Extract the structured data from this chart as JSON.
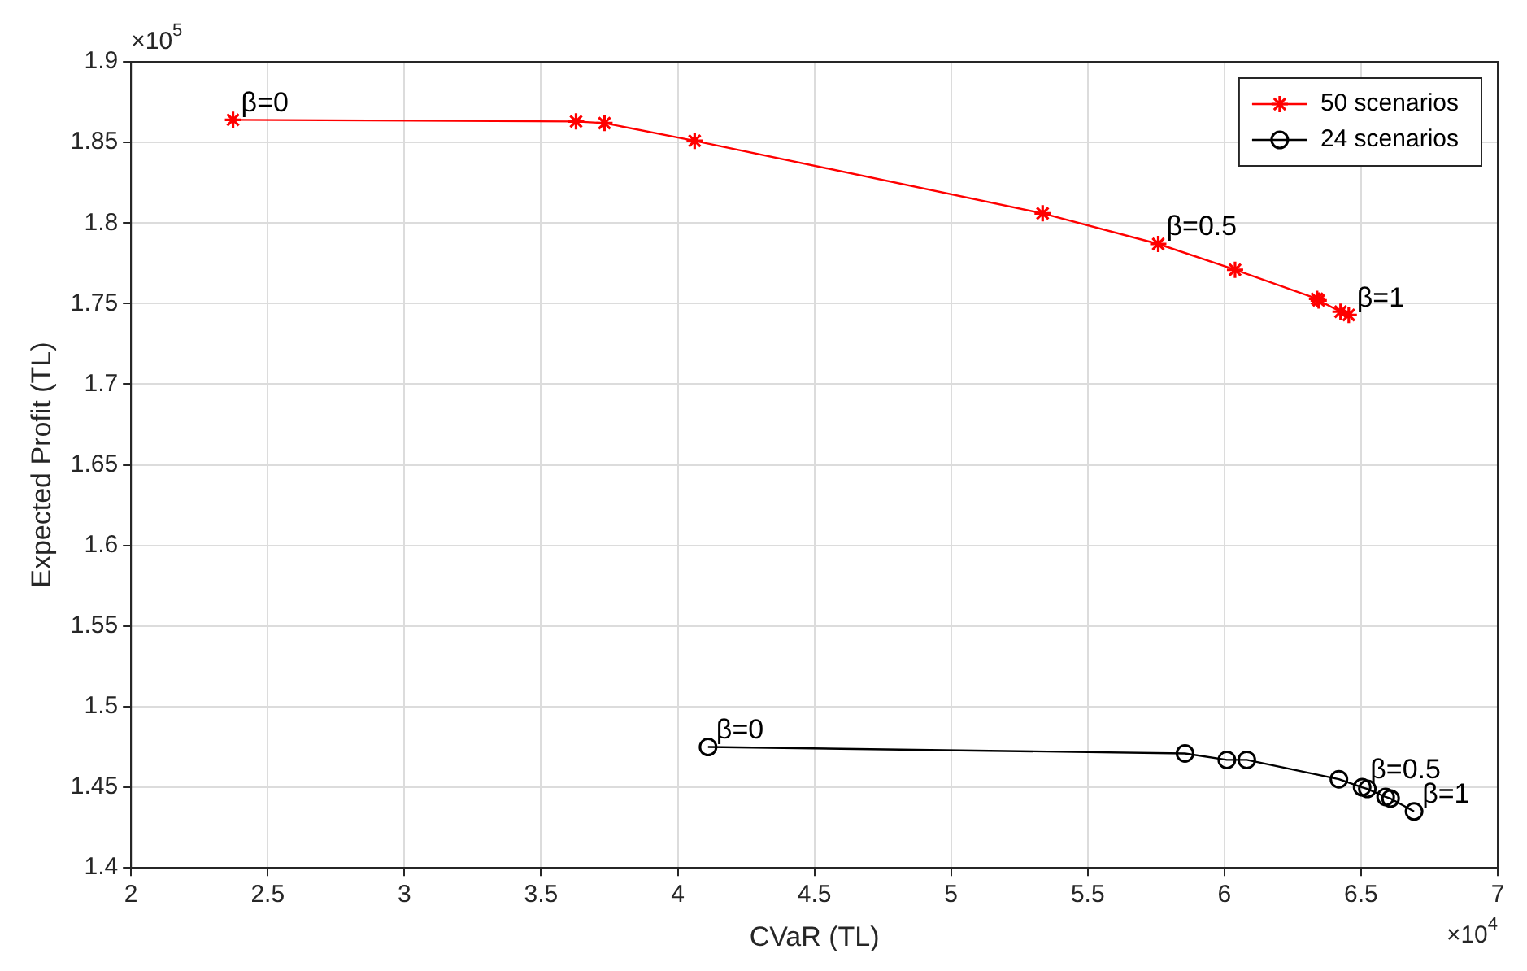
{
  "chart_data": {
    "type": "line",
    "xlabel": "CVaR (TL)",
    "ylabel": "Expected Profit (TL)",
    "xlim": [
      2,
      7
    ],
    "xticks": [
      2,
      2.5,
      3,
      3.5,
      4,
      4.5,
      5,
      5.5,
      6,
      6.5,
      7
    ],
    "ylim": [
      1.4,
      1.9
    ],
    "yticks": [
      1.4,
      1.45,
      1.5,
      1.55,
      1.6,
      1.65,
      1.7,
      1.75,
      1.8,
      1.85,
      1.9
    ],
    "grid": true,
    "legend": "top right",
    "line_style": "solid",
    "series": [
      {
        "name": "50 scenarios",
        "color": "#ff0000",
        "marker": "cross",
        "x": [
          2.373,
          3.628,
          3.732,
          4.062,
          5.335,
          5.758,
          6.039,
          6.339,
          6.345,
          6.425,
          6.455
        ],
        "values": [
          1.864,
          1.863,
          1.862,
          1.851,
          1.806,
          1.787,
          1.771,
          1.753,
          1.752,
          1.745,
          1.743
        ]
      },
      {
        "name": "24 scenarios",
        "color": "#000000",
        "marker": "circle",
        "x": [
          4.111,
          5.856,
          6.009,
          6.082,
          6.419,
          6.504,
          6.523,
          6.59,
          6.608,
          6.694
        ],
        "values": [
          1.475,
          1.471,
          1.467,
          1.467,
          1.455,
          1.45,
          1.449,
          1.444,
          1.443,
          1.435
        ]
      }
    ],
    "annotations": [
      "×10$^{5}$",
      "×10$^{4}$",
      {
        "text": "β=0",
        "x": 2.373,
        "y": 1.864
      },
      {
        "text": "β=0.5",
        "x": 5.758,
        "y": 1.787
      },
      {
        "text": "β=1",
        "x": 6.455,
        "y": 1.743
      },
      {
        "text": "β=0",
        "x": 4.111,
        "y": 1.475
      },
      {
        "text": "β=0.5",
        "x": 6.504,
        "y": 1.45
      },
      {
        "text": "β=1",
        "x": 6.694,
        "y": 1.435
      }
    ]
  }
}
